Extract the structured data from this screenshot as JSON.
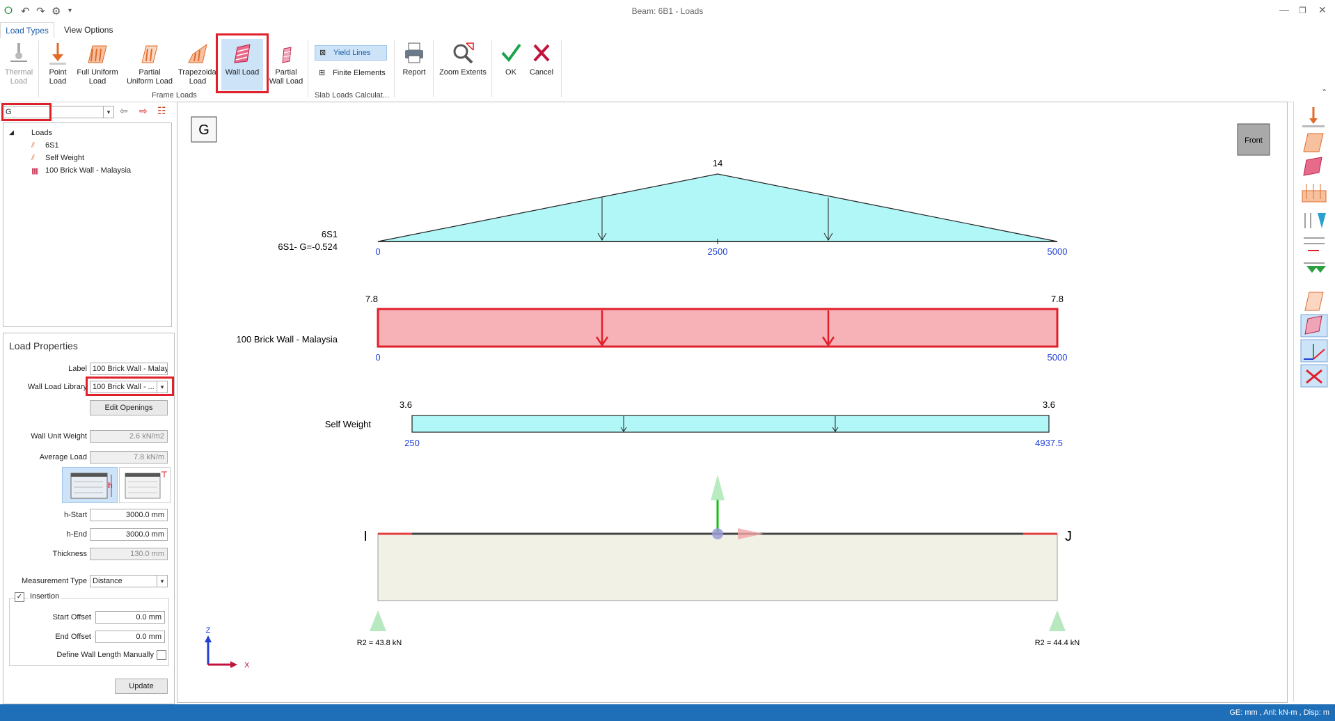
{
  "window": {
    "title": "Beam: 6B1 - Loads"
  },
  "tabs": {
    "load_types": "Load Types",
    "view_options": "View Options"
  },
  "ribbon": {
    "thermal": "Thermal\nLoad",
    "point": "Point\nLoad",
    "full_uniform": "Full Uniform\nLoad",
    "partial_uniform": "Partial\nUniform Load",
    "trapezoidal": "Trapezoidal\nLoad",
    "wall_load": "Wall Load",
    "partial_wall": "Partial\nWall Load",
    "frame_loads_group": "Frame Loads",
    "yield_lines": "Yield Lines",
    "finite_elements": "Finite Elements",
    "slab_group": "Slab Loads Calculat...",
    "report": "Report",
    "zoom_extents": "Zoom Extents",
    "ok": "OK",
    "cancel": "Cancel"
  },
  "loadcase": {
    "value": "G"
  },
  "tree": {
    "root": "Loads",
    "items": [
      "6S1",
      "Self Weight",
      "100 Brick Wall - Malaysia"
    ]
  },
  "props": {
    "title": "Load Properties",
    "label_lbl": "Label",
    "label_val": "100 Brick Wall - Malay",
    "library_lbl": "Wall Load Library",
    "library_val": "100 Brick Wall - ...",
    "edit_openings": "Edit Openings",
    "unit_weight_lbl": "Wall Unit Weight",
    "unit_weight_val": "2.6 kN/m2",
    "avg_load_lbl": "Average Load",
    "avg_load_val": "7.8 kN/m",
    "h_glyph": "h",
    "h_start_lbl": "h-Start",
    "h_start_val": "3000.0 mm",
    "h_end_lbl": "h-End",
    "h_end_val": "3000.0 mm",
    "thickness_lbl": "Thickness",
    "thickness_val": "130.0 mm",
    "measure_lbl": "Measurement Type",
    "measure_val": "Distance",
    "insertion": "Insertion",
    "start_offset_lbl": "Start Offset",
    "start_offset_val": "0.0 mm",
    "end_offset_lbl": "End Offset",
    "end_offset_val": "0.0 mm",
    "define_manual": "Define Wall Length Manually",
    "update": "Update"
  },
  "canvas": {
    "case_badge": "G",
    "view_btn": "Front",
    "load1": {
      "name": "6S1",
      "desc": "6S1- G=-0.524",
      "peak": "14",
      "x0": "0",
      "xmid": "2500",
      "x1": "5000"
    },
    "load2": {
      "name": "100 Brick Wall - Malaysia",
      "v_left": "7.8",
      "v_right": "7.8",
      "x0": "0",
      "x1": "5000"
    },
    "load3": {
      "name": "Self Weight",
      "v_left": "3.6",
      "v_right": "3.6",
      "x0": "250",
      "x1": "4937.5"
    },
    "node_i": "I",
    "node_j": "J",
    "r_left": "R2 = 43.8 kN",
    "r_right": "R2 = 44.4 kN",
    "axis_z": "Z",
    "axis_x": "X"
  },
  "status": {
    "units": "GE: mm , Anl: kN-m , Disp: m"
  },
  "colors": {
    "accent": "#1e5fa8",
    "highlight": "#e0202a",
    "load_fill": "#b2f7f7",
    "wall_fill": "#f7b2b8",
    "status": "#1f6fb8"
  }
}
